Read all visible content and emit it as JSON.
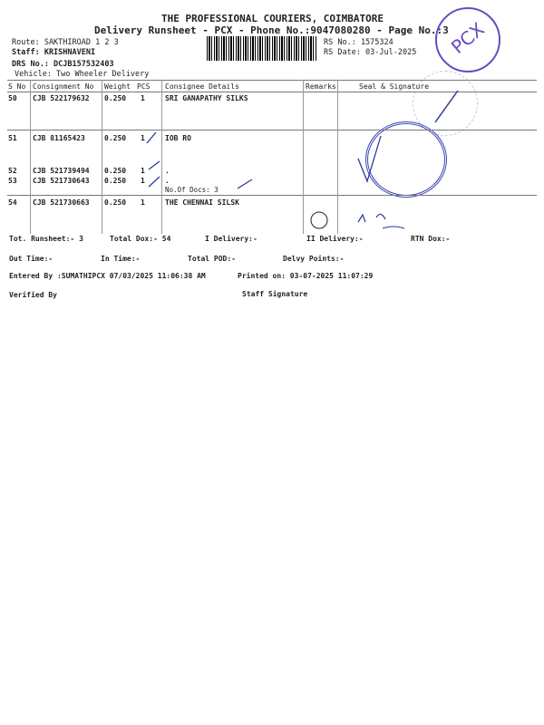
{
  "header": {
    "company": "THE PROFESSIONAL COURIERS, COIMBATORE",
    "subtitle": "Delivery Runsheet - PCX - Phone No.:9047080280 - Page No.:3",
    "route": "Route: SAKTHIROAD 1 2 3",
    "staff": "Staff: KRISHNAVENI",
    "drs": "DRS No.: DCJB157532403",
    "vehicle": "Vehicle: Two Wheeler Delivery",
    "rs_no": "RS No.: 1575324",
    "rs_date": "RS Date: 03-Jul-2025",
    "stamp_text": "PCX"
  },
  "table": {
    "columns": [
      "S No",
      "Consignment No",
      "Weight",
      "PCS",
      "Consignee Details",
      "Remarks",
      "Seal & Signature"
    ],
    "rows": [
      {
        "sno": "50",
        "cons": "CJB 522179632",
        "weight": "0.250",
        "pcs": "1",
        "details": "SRI GANAPATHY SILKS"
      },
      {
        "sno": "51",
        "cons": "CJB 81165423",
        "weight": "0.250",
        "pcs": "1",
        "details": "IOB RO"
      },
      {
        "sno": "52",
        "cons": "CJB 521739494",
        "weight": "0.250",
        "pcs": "1",
        "details": "."
      },
      {
        "sno": "53",
        "cons": "CJB 521730643",
        "weight": "0.250",
        "pcs": "1",
        "details": "."
      },
      {
        "sno": "54",
        "cons": "CJB 521730663",
        "weight": "0.250",
        "pcs": "1",
        "details": "THE CHENNAI SILSK"
      }
    ],
    "docs_note": "No.Of Docs: 3"
  },
  "summary": {
    "tot_runsheet": "Tot. Runsheet:- 3",
    "total_dox": "Total Dox:-   54",
    "i_delivery": "I Delivery:-",
    "ii_delivery": "II Delivery:-",
    "rtn_dox": "RTN Dox:-",
    "out_time": "Out Time:-",
    "in_time": "In Time:-",
    "total_pod": "Total POD:-",
    "delvy_points": "Delvy Points:-",
    "entered_by": "Entered By :SUMATHIPCX 07/03/2025 11:06:38 AM",
    "printed_on": "Printed on: 03-07-2025 11:07:29",
    "verified_by": "Verified By",
    "staff_signature": "Staff Signature"
  }
}
